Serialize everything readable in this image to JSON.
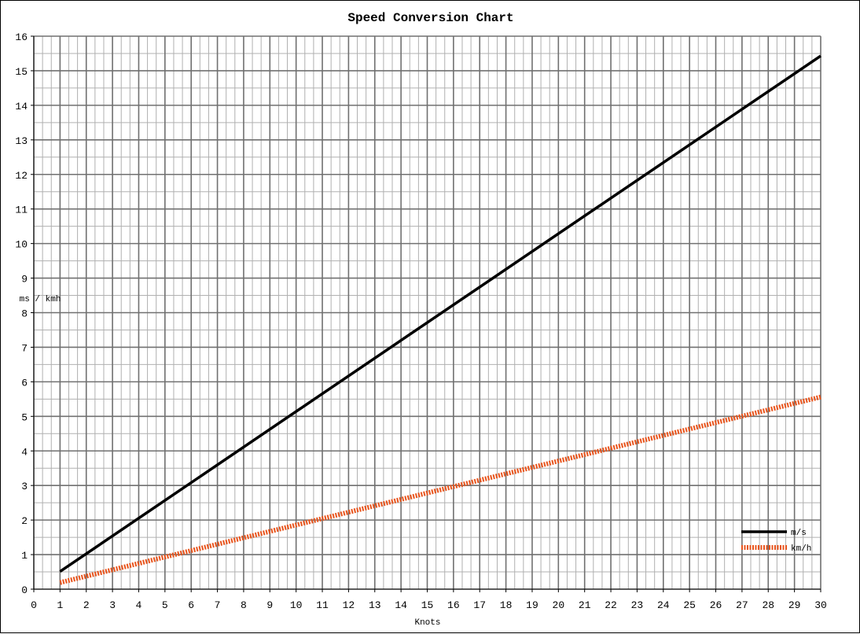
{
  "chart_data": {
    "type": "line",
    "title": "Speed Conversion Chart",
    "xlabel": "Knots",
    "ylabel": "ms / kmh",
    "xlim": [
      0,
      30
    ],
    "ylim": [
      0,
      16
    ],
    "x_ticks": [
      0,
      1,
      2,
      3,
      4,
      5,
      6,
      7,
      8,
      9,
      10,
      11,
      12,
      13,
      14,
      15,
      16,
      17,
      18,
      19,
      20,
      21,
      22,
      23,
      24,
      25,
      26,
      27,
      28,
      29,
      30
    ],
    "y_ticks": [
      0,
      1,
      2,
      3,
      4,
      5,
      6,
      7,
      8,
      9,
      10,
      11,
      12,
      13,
      14,
      15,
      16
    ],
    "grid": true,
    "legend_position": "bottom-right",
    "series": [
      {
        "name": "m/s",
        "color": "#000000",
        "style": "solid",
        "x": [
          1,
          30
        ],
        "y": [
          0.51,
          15.43
        ]
      },
      {
        "name": "km/h",
        "color": "#e8541c",
        "style": "dashed",
        "x": [
          1,
          30
        ],
        "y": [
          0.19,
          5.56
        ]
      }
    ]
  }
}
